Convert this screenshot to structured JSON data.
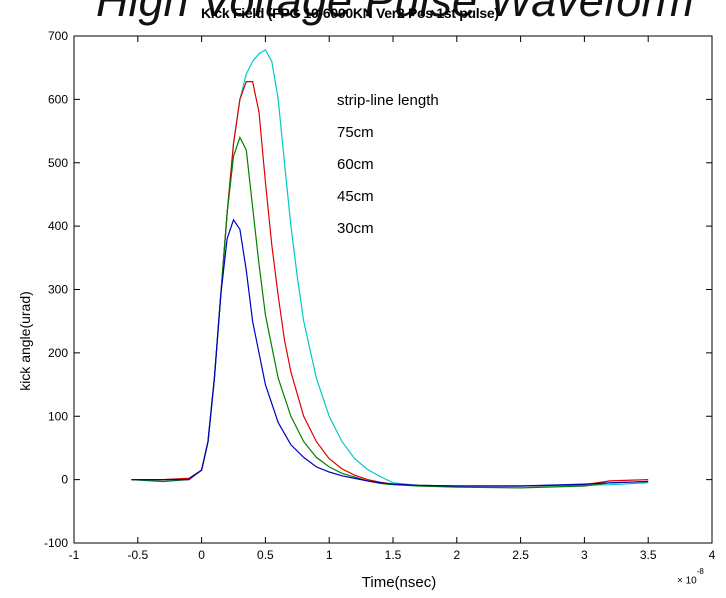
{
  "chart_data": {
    "type": "line",
    "overlay_title": "High Voltage Pulse Waveform",
    "title": "Kick Field (FPG 10-6000KN Ver2 Pos 1st pulse)",
    "xlabel": "Time(nsec)",
    "ylabel": "kick angle(urad)",
    "x_multiplier": {
      "base": "× 10",
      "exponent": "-8"
    },
    "xlim": [
      -1,
      4
    ],
    "ylim": [
      -100,
      700
    ],
    "xticks": [
      -1,
      -0.5,
      0,
      0.5,
      1,
      1.5,
      2,
      2.5,
      3,
      3.5,
      4
    ],
    "xtick_labels": [
      "-1",
      "-0.5",
      "0",
      "0.5",
      "1",
      "1.5",
      "2",
      "2.5",
      "3",
      "3.5",
      "4"
    ],
    "yticks": [
      -100,
      0,
      100,
      200,
      300,
      400,
      500,
      600,
      700
    ],
    "ytick_labels": [
      "-100",
      "0",
      "100",
      "200",
      "300",
      "400",
      "500",
      "600",
      "700"
    ],
    "grid": false,
    "annotations": [
      "strip-line length",
      "75cm",
      "60cm",
      "45cm",
      "30cm"
    ],
    "series": [
      {
        "color": "#00c8c8",
        "x": [
          -0.55,
          -0.3,
          -0.1,
          0.0,
          0.05,
          0.1,
          0.15,
          0.2,
          0.25,
          0.3,
          0.35,
          0.4,
          0.45,
          0.5,
          0.55,
          0.6,
          0.65,
          0.7,
          0.75,
          0.8,
          0.9,
          1.0,
          1.1,
          1.2,
          1.3,
          1.4,
          1.5,
          1.7,
          2.0,
          2.5,
          3.0,
          3.2,
          3.5
        ],
        "y": [
          0,
          0,
          2,
          15,
          60,
          160,
          290,
          420,
          530,
          600,
          640,
          660,
          672,
          678,
          660,
          600,
          500,
          400,
          320,
          250,
          160,
          100,
          60,
          33,
          16,
          5,
          -5,
          -9,
          -10,
          -10,
          -9,
          -8,
          -5
        ]
      },
      {
        "color": "#e00000",
        "x": [
          -0.55,
          -0.3,
          -0.1,
          0.0,
          0.05,
          0.1,
          0.15,
          0.2,
          0.25,
          0.3,
          0.35,
          0.4,
          0.45,
          0.5,
          0.55,
          0.6,
          0.65,
          0.7,
          0.8,
          0.9,
          1.0,
          1.1,
          1.2,
          1.3,
          1.4,
          1.5,
          1.7,
          2.0,
          2.5,
          3.0,
          3.2,
          3.5
        ],
        "y": [
          0,
          0,
          2,
          15,
          60,
          160,
          290,
          420,
          530,
          600,
          628,
          628,
          580,
          470,
          370,
          290,
          220,
          170,
          100,
          60,
          33,
          17,
          7,
          0,
          -4,
          -7,
          -9,
          -10,
          -10,
          -8,
          -2,
          0
        ]
      },
      {
        "color": "#008000",
        "x": [
          -0.55,
          -0.3,
          -0.1,
          0.0,
          0.05,
          0.1,
          0.15,
          0.2,
          0.25,
          0.3,
          0.35,
          0.4,
          0.45,
          0.5,
          0.6,
          0.7,
          0.8,
          0.9,
          1.0,
          1.1,
          1.2,
          1.3,
          1.4,
          1.5,
          1.7,
          2.0,
          2.5,
          3.0,
          3.2,
          3.5
        ],
        "y": [
          0,
          -3,
          0,
          15,
          60,
          160,
          290,
          420,
          510,
          540,
          520,
          430,
          340,
          260,
          160,
          100,
          60,
          35,
          20,
          10,
          4,
          -2,
          -6,
          -8,
          -10,
          -12,
          -13,
          -10,
          -5,
          -3
        ]
      },
      {
        "color": "#0000c0",
        "x": [
          -0.55,
          -0.3,
          -0.1,
          0.0,
          0.05,
          0.1,
          0.15,
          0.2,
          0.25,
          0.3,
          0.35,
          0.4,
          0.5,
          0.6,
          0.7,
          0.8,
          0.9,
          1.0,
          1.1,
          1.2,
          1.3,
          1.4,
          1.5,
          1.7,
          2.0,
          2.5,
          3.0,
          3.2,
          3.5
        ],
        "y": [
          0,
          0,
          0,
          15,
          60,
          160,
          290,
          380,
          410,
          395,
          330,
          250,
          150,
          90,
          55,
          35,
          20,
          12,
          6,
          2,
          -2,
          -5,
          -7,
          -9,
          -10,
          -10,
          -7,
          -5,
          -3
        ]
      }
    ]
  }
}
